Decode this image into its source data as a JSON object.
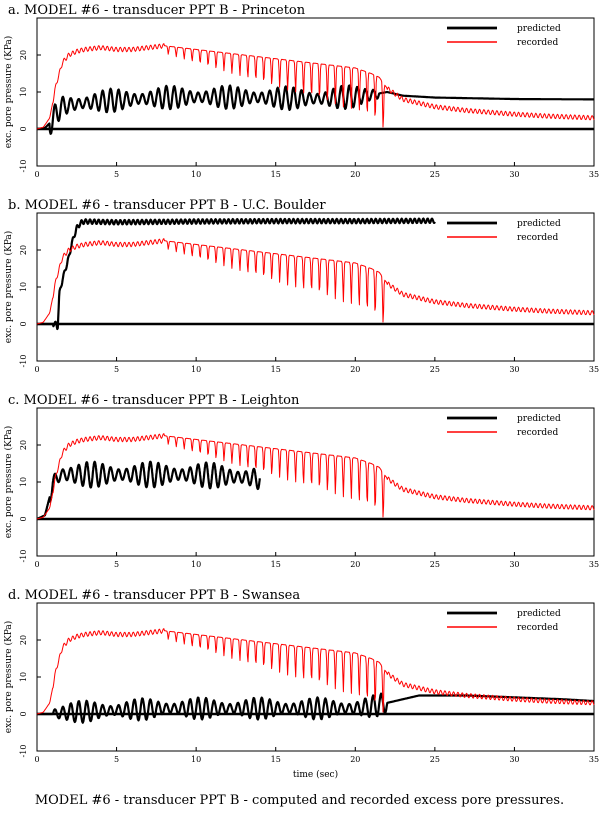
{
  "figure": {
    "caption": "MODEL #6 - transducer PPT B - computed and recorded excess pore pressures.",
    "xlabel": "time (sec)"
  },
  "chart_data": [
    {
      "type": "line",
      "title": "a. MODEL #6 - transducer PPT B - Princeton",
      "ylabel": "exc. pore pressure (KPa)",
      "xlabel": "",
      "xlim": [
        0,
        35
      ],
      "ylim": [
        -10,
        30
      ],
      "xticks": [
        0,
        5,
        10,
        15,
        20,
        25,
        30,
        35
      ],
      "yticks": [
        -10,
        0,
        10,
        20
      ],
      "grid": false,
      "legend": "top-right",
      "series": [
        {
          "name": "predicted",
          "color": "#000000",
          "width": 2.2,
          "points": [
            [
              0,
              0
            ],
            [
              0.5,
              0.3
            ],
            [
              0.9,
              2
            ],
            [
              1.2,
              4
            ],
            [
              1.5,
              6
            ],
            [
              2,
              6.5
            ],
            [
              3,
              7
            ],
            [
              4,
              7.5
            ],
            [
              5,
              7.8
            ],
            [
              6,
              8
            ],
            [
              8,
              8.5
            ],
            [
              10,
              8.6
            ],
            [
              12,
              8.6
            ],
            [
              14,
              8.5
            ],
            [
              16,
              8.3
            ],
            [
              18,
              8.2
            ],
            [
              20,
              8.8
            ],
            [
              21,
              9.2
            ],
            [
              22,
              10
            ],
            [
              23,
              9
            ],
            [
              25,
              8.5
            ],
            [
              30,
              8.1
            ],
            [
              35,
              8
            ]
          ],
          "osc": {
            "t0": 0.8,
            "t1": 21.5,
            "period": 0.5,
            "amp": 3.2
          }
        },
        {
          "name": "recorded",
          "color": "#ff0000",
          "width": 1,
          "points": [
            [
              0,
              0
            ],
            [
              0.4,
              0.5
            ],
            [
              0.8,
              3
            ],
            [
              1.2,
              12
            ],
            [
              1.6,
              18
            ],
            [
              2,
              20
            ],
            [
              2.5,
              21
            ],
            [
              3,
              21.5
            ],
            [
              4,
              22
            ],
            [
              5,
              21.5
            ],
            [
              6,
              21.5
            ],
            [
              7,
              22
            ],
            [
              8,
              22.5
            ],
            [
              9,
              22
            ],
            [
              10,
              21.5
            ],
            [
              11,
              21
            ],
            [
              12,
              20.5
            ],
            [
              13,
              20
            ],
            [
              14,
              19.5
            ],
            [
              15,
              19
            ],
            [
              16,
              18.5
            ],
            [
              17,
              18
            ],
            [
              18,
              17.5
            ],
            [
              19,
              17
            ],
            [
              20,
              16.5
            ],
            [
              21,
              15
            ],
            [
              21.5,
              14
            ],
            [
              22,
              11
            ],
            [
              23,
              8
            ],
            [
              24,
              7
            ],
            [
              25,
              6
            ],
            [
              27,
              5
            ],
            [
              30,
              4
            ],
            [
              32,
              3.5
            ],
            [
              35,
              3
            ]
          ],
          "dips": {
            "t0": 8,
            "t1": 22,
            "period": 0.5,
            "amp": [
              2,
              13
            ]
          }
        }
      ],
      "legend_entries": [
        "predicted",
        "recorded"
      ]
    },
    {
      "type": "line",
      "title": "b. MODEL #6 - transducer PPT B - U.C. Boulder",
      "ylabel": "exc. pore pressure (KPa)",
      "xlabel": "",
      "xlim": [
        0,
        35
      ],
      "ylim": [
        -10,
        30
      ],
      "xticks": [
        0,
        5,
        10,
        15,
        20,
        25,
        30,
        35
      ],
      "yticks": [
        -10,
        0,
        10,
        20
      ],
      "grid": false,
      "legend": "top-right",
      "series": [
        {
          "name": "predicted",
          "color": "#000000",
          "width": 2.2,
          "points": [
            [
              0,
              0
            ],
            [
              1.2,
              0
            ],
            [
              1.3,
              -1
            ],
            [
              1.4,
              8
            ],
            [
              1.6,
              12
            ],
            [
              1.8,
              15
            ],
            [
              2,
              18
            ],
            [
              2.2,
              22
            ],
            [
              2.5,
              26
            ],
            [
              2.8,
              27.5
            ],
            [
              3,
              27.7
            ],
            [
              5,
              27.5
            ],
            [
              10,
              27.7
            ],
            [
              15,
              27.8
            ],
            [
              20,
              27.8
            ],
            [
              25,
              27.9
            ]
          ],
          "osc": null
        },
        {
          "name": "recorded",
          "color": "#ff0000",
          "width": 1,
          "points": [
            [
              0,
              0
            ],
            [
              0.4,
              0.5
            ],
            [
              0.8,
              3
            ],
            [
              1.2,
              12
            ],
            [
              1.6,
              18
            ],
            [
              2,
              20
            ],
            [
              2.5,
              21
            ],
            [
              3,
              21.5
            ],
            [
              4,
              22
            ],
            [
              5,
              21.5
            ],
            [
              6,
              21.5
            ],
            [
              7,
              22
            ],
            [
              8,
              22.5
            ],
            [
              9,
              22
            ],
            [
              10,
              21.5
            ],
            [
              11,
              21
            ],
            [
              12,
              20.5
            ],
            [
              13,
              20
            ],
            [
              14,
              19.5
            ],
            [
              15,
              19
            ],
            [
              16,
              18.5
            ],
            [
              17,
              18
            ],
            [
              18,
              17.5
            ],
            [
              19,
              17
            ],
            [
              20,
              16.5
            ],
            [
              21,
              15
            ],
            [
              21.5,
              14
            ],
            [
              22,
              11
            ],
            [
              23,
              8
            ],
            [
              24,
              7
            ],
            [
              25,
              6
            ],
            [
              27,
              5
            ],
            [
              30,
              4
            ],
            [
              32,
              3.5
            ],
            [
              35,
              3
            ]
          ],
          "dips": {
            "t0": 8,
            "t1": 22,
            "period": 0.5,
            "amp": [
              2,
              13
            ]
          }
        }
      ],
      "legend_entries": [
        "predicted",
        "recorded"
      ]
    },
    {
      "type": "line",
      "title": "c. MODEL #6 - transducer PPT B - Leighton",
      "ylabel": "exc. pore pressure (KPa)",
      "xlabel": "",
      "xlim": [
        0,
        35
      ],
      "ylim": [
        -10,
        30
      ],
      "xticks": [
        0,
        5,
        10,
        15,
        20,
        25,
        30,
        35
      ],
      "yticks": [
        -10,
        0,
        10,
        20
      ],
      "grid": false,
      "legend": "top-right",
      "series": [
        {
          "name": "predicted",
          "color": "#000000",
          "width": 2.2,
          "points": [
            [
              0,
              0
            ],
            [
              0.5,
              1
            ],
            [
              0.8,
              6
            ],
            [
              1,
              10
            ],
            [
              1.5,
              12
            ],
            [
              2,
              12
            ],
            [
              4,
              12
            ],
            [
              6,
              12
            ],
            [
              8,
              12
            ],
            [
              10,
              12
            ],
            [
              12,
              11.5
            ],
            [
              14,
              11
            ]
          ],
          "osc": {
            "t0": 0.8,
            "t1": 14,
            "period": 0.5,
            "amp": 3.5
          }
        },
        {
          "name": "recorded",
          "color": "#ff0000",
          "width": 1,
          "points": [
            [
              0,
              0
            ],
            [
              0.4,
              0.5
            ],
            [
              0.8,
              3
            ],
            [
              1.2,
              12
            ],
            [
              1.6,
              18
            ],
            [
              2,
              20
            ],
            [
              2.5,
              21
            ],
            [
              3,
              21.5
            ],
            [
              4,
              22
            ],
            [
              5,
              21.5
            ],
            [
              6,
              21.5
            ],
            [
              7,
              22
            ],
            [
              8,
              22.5
            ],
            [
              9,
              22
            ],
            [
              10,
              21.5
            ],
            [
              11,
              21
            ],
            [
              12,
              20.5
            ],
            [
              13,
              20
            ],
            [
              14,
              19.5
            ],
            [
              15,
              19
            ],
            [
              16,
              18.5
            ],
            [
              17,
              18
            ],
            [
              18,
              17.5
            ],
            [
              19,
              17
            ],
            [
              20,
              16.5
            ],
            [
              21,
              15
            ],
            [
              21.5,
              14
            ],
            [
              22,
              11
            ],
            [
              23,
              8
            ],
            [
              24,
              7
            ],
            [
              25,
              6
            ],
            [
              27,
              5
            ],
            [
              30,
              4
            ],
            [
              32,
              3.5
            ],
            [
              35,
              3
            ]
          ],
          "dips": {
            "t0": 8,
            "t1": 22,
            "period": 0.5,
            "amp": [
              2,
              13
            ]
          }
        }
      ],
      "legend_entries": [
        "predicted",
        "recorded"
      ]
    },
    {
      "type": "line",
      "title": "d. MODEL #6 - transducer PPT B - Swansea",
      "ylabel": "exc. pore pressure (KPa)",
      "xlabel": "time (sec)",
      "xlim": [
        0,
        35
      ],
      "ylim": [
        -10,
        30
      ],
      "xticks": [
        0,
        5,
        10,
        15,
        20,
        25,
        30,
        35
      ],
      "yticks": [
        -10,
        0,
        10,
        20
      ],
      "grid": false,
      "legend": "top-right",
      "series": [
        {
          "name": "predicted",
          "color": "#000000",
          "width": 2.2,
          "points": [
            [
              0,
              0
            ],
            [
              1,
              0
            ],
            [
              2,
              0.5
            ],
            [
              5,
              1
            ],
            [
              8,
              1.5
            ],
            [
              10,
              1.5
            ],
            [
              13,
              1.5
            ],
            [
              15,
              1.5
            ],
            [
              18,
              1.5
            ],
            [
              20,
              1.5
            ],
            [
              21,
              2
            ],
            [
              22,
              3
            ],
            [
              23,
              4
            ],
            [
              24,
              5
            ],
            [
              25,
              5
            ],
            [
              27,
              5
            ],
            [
              30,
              4.5
            ],
            [
              33,
              4
            ],
            [
              35,
              3.5
            ]
          ],
          "osc": {
            "t0": 1,
            "t1": 22,
            "period": 0.5,
            "amp": 3
          }
        },
        {
          "name": "recorded",
          "color": "#ff0000",
          "width": 1,
          "points": [
            [
              0,
              0
            ],
            [
              0.4,
              0.5
            ],
            [
              0.8,
              3
            ],
            [
              1.2,
              12
            ],
            [
              1.6,
              18
            ],
            [
              2,
              20
            ],
            [
              2.5,
              21
            ],
            [
              3,
              21.5
            ],
            [
              4,
              22
            ],
            [
              5,
              21.5
            ],
            [
              6,
              21.5
            ],
            [
              7,
              22
            ],
            [
              8,
              22.5
            ],
            [
              9,
              22
            ],
            [
              10,
              21.5
            ],
            [
              11,
              21
            ],
            [
              12,
              20.5
            ],
            [
              13,
              20
            ],
            [
              14,
              19.5
            ],
            [
              15,
              19
            ],
            [
              16,
              18.5
            ],
            [
              17,
              18
            ],
            [
              18,
              17.5
            ],
            [
              19,
              17
            ],
            [
              20,
              16.5
            ],
            [
              21,
              15
            ],
            [
              21.5,
              14
            ],
            [
              22,
              11
            ],
            [
              23,
              8
            ],
            [
              24,
              7
            ],
            [
              25,
              6
            ],
            [
              27,
              5
            ],
            [
              30,
              4
            ],
            [
              32,
              3.5
            ],
            [
              35,
              3
            ]
          ],
          "dips": {
            "t0": 8,
            "t1": 22,
            "period": 0.5,
            "amp": [
              2,
              13
            ]
          }
        }
      ],
      "legend_entries": [
        "predicted",
        "recorded"
      ]
    }
  ]
}
